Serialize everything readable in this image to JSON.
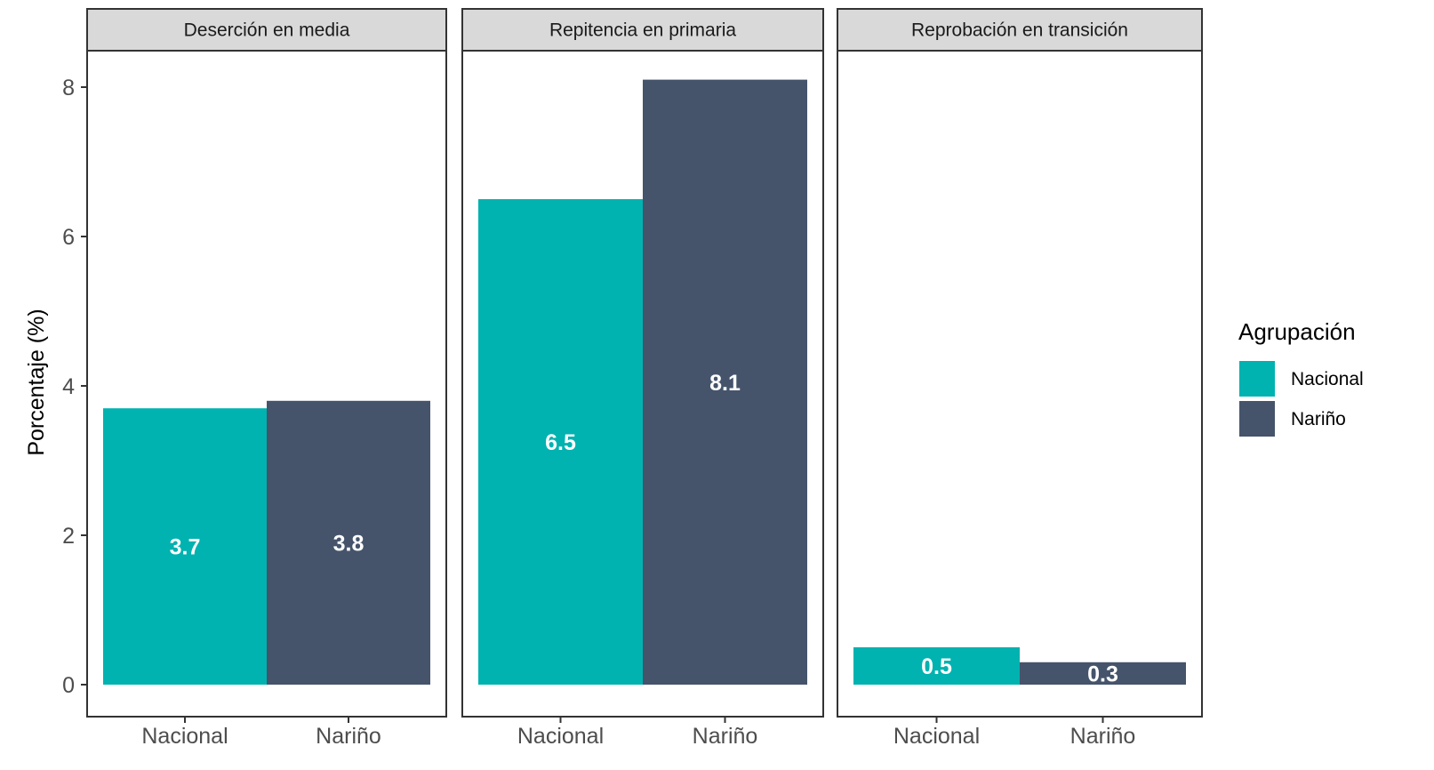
{
  "chart_data": {
    "type": "bar",
    "ylabel": "Porcentaje (%)",
    "ylim": [
      0,
      8.6
    ],
    "yticks": [
      "0",
      "2",
      "4",
      "6",
      "8"
    ],
    "grid": false,
    "legend": {
      "title": "Agrupación",
      "placement": "right",
      "entries": [
        "Nacional",
        "Nariño"
      ]
    },
    "colors": {
      "Nacional": "#00b2b0",
      "Nariño": "#45546b"
    },
    "categories": [
      "Nacional",
      "Nariño"
    ],
    "facets": [
      {
        "title": "Deserción en media",
        "values": [
          3.7,
          3.8
        ],
        "labels": [
          "3.7",
          "3.8"
        ]
      },
      {
        "title": "Repitencia en primaria",
        "values": [
          6.5,
          8.1
        ],
        "labels": [
          "6.5",
          "8.1"
        ]
      },
      {
        "title": "Reprobación en transición",
        "values": [
          0.5,
          0.3
        ],
        "labels": [
          "0.5",
          "0.3"
        ]
      }
    ]
  }
}
